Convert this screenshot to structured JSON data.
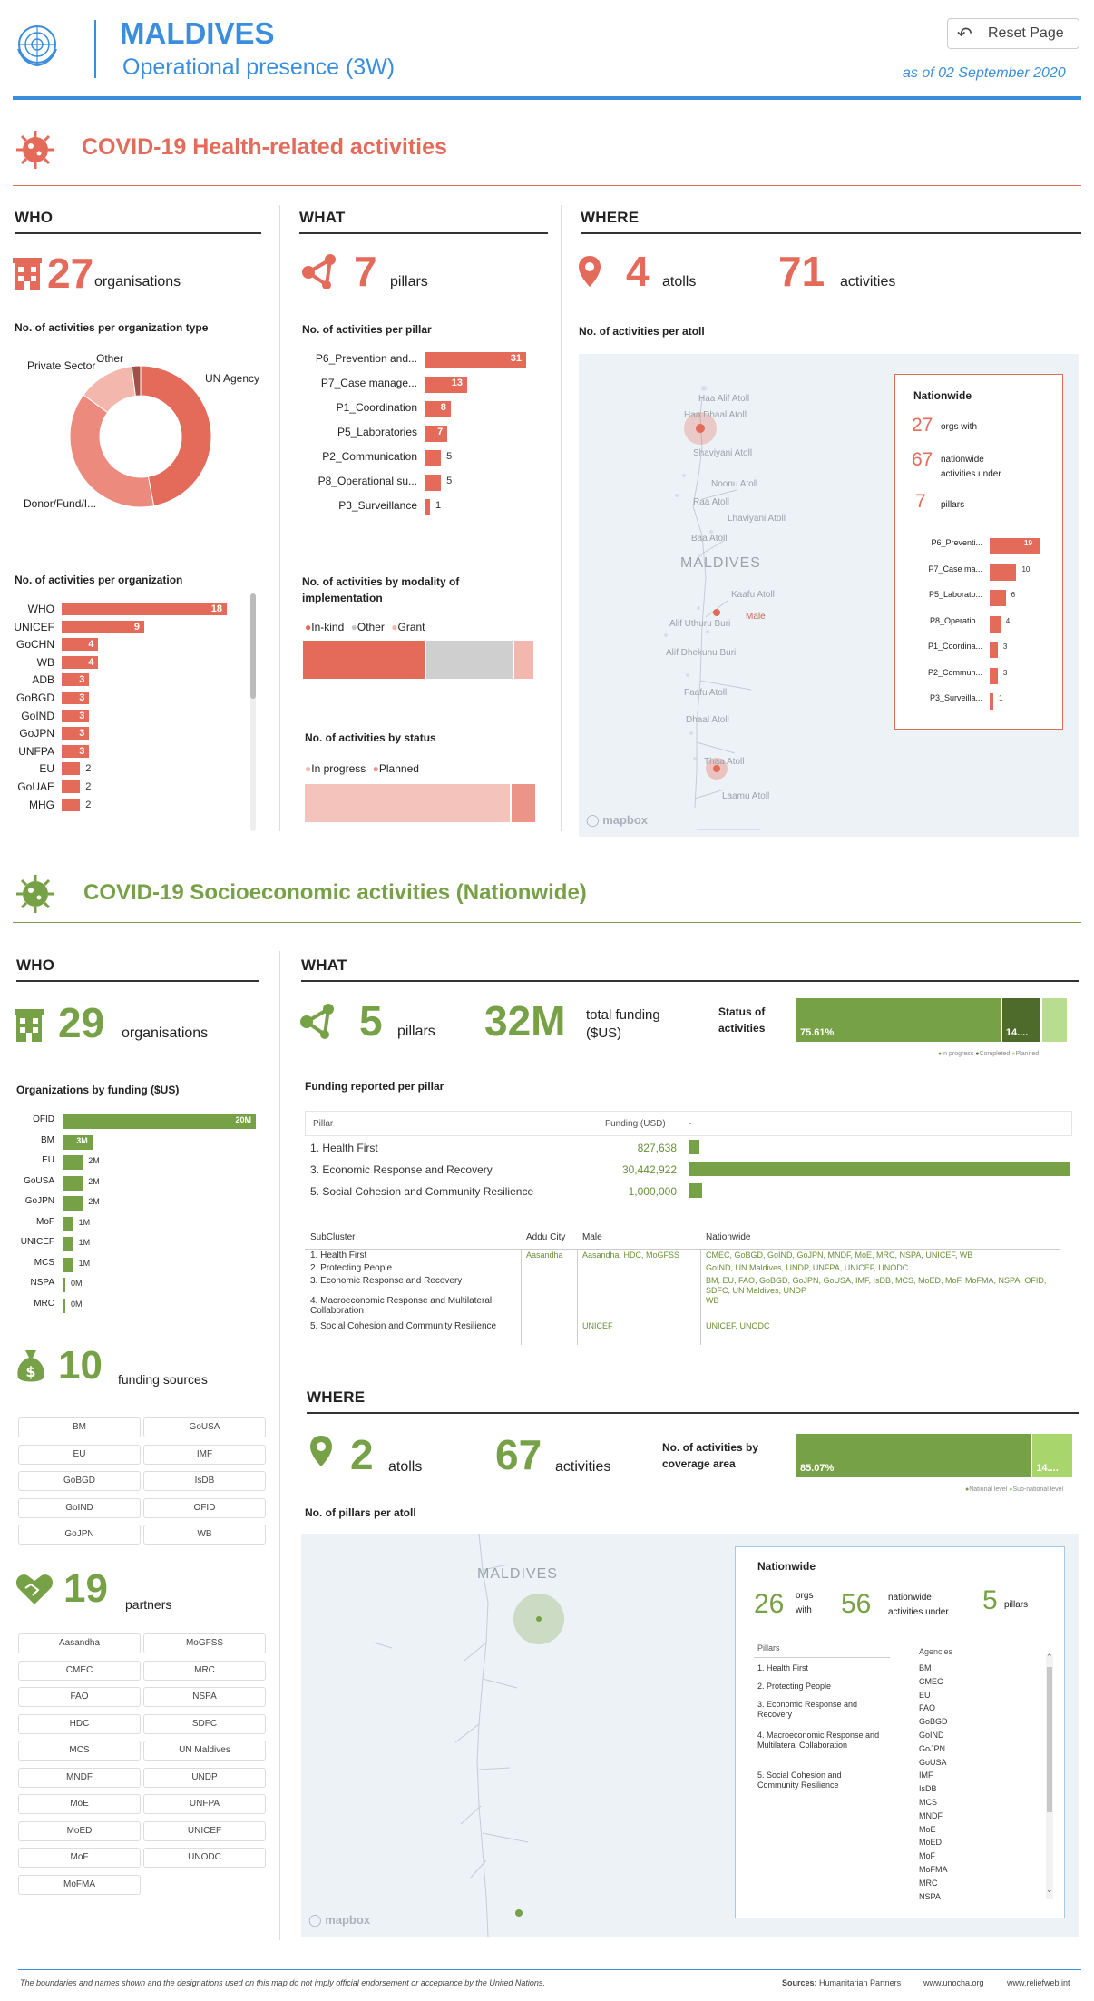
{
  "header": {
    "country": "MALDIVES",
    "subtitle": "Operational presence (3W)",
    "reset_label": "Reset Page",
    "date": "as of 02 September 2020"
  },
  "covid_health": {
    "title": "COVID-19 Health-related activities",
    "who": {
      "heading": "WHO",
      "org_count": "27",
      "org_label": "organisations",
      "donut_title": "No. of activities per organization type",
      "donut_labels": {
        "un": "UN Agency",
        "donor": "Donor/Fund/I...",
        "private": "Private Sector",
        "other": "Other"
      },
      "org_bars_title": "No. of activities per organization"
    },
    "what": {
      "heading": "WHAT",
      "pillar_count": "7",
      "pillar_label": "pillars",
      "pillar_bars_title": "No. of activities per pillar",
      "modality_title": "No. of activities by modality of implementation",
      "modality_legend": [
        "In-kind",
        "Other",
        "Grant"
      ],
      "status_title": "No. of activities by status",
      "status_legend": [
        "In progress",
        "Planned"
      ]
    },
    "where": {
      "heading": "WHERE",
      "atoll_count": "4",
      "atoll_label": "atolls",
      "activity_count": "71",
      "activity_label": "activities",
      "map_title": "No. of activities per atoll",
      "map_labels": [
        "Haa Alif Atoll",
        "Haa Dhaal Atoll",
        "Shaviyani Atoll",
        "Noonu Atoll",
        "Raa Atoll",
        "Lhaviyani Atoll",
        "Baa Atoll",
        "MALDIVES",
        "Kaafu Atoll",
        "Alif Uthuru Buri",
        "Male",
        "Alif Dhekunu Buri",
        "Faafu Atoll",
        "Dhaal Atoll",
        "Thaa Atoll",
        "Laamu Atoll"
      ],
      "mapbox": "mapbox",
      "nationwide": {
        "title": "Nationwide",
        "orgs": "27",
        "orgs_label": "orgs with",
        "acts": "67",
        "acts_label1": "nationwide",
        "acts_label2": "activities under",
        "pillars": "7",
        "pillars_label": "pillars"
      }
    }
  },
  "covid_socio": {
    "title": "COVID-19 Socioeconomic activities (Nationwide)",
    "who": {
      "heading": "WHO",
      "org_count": "29",
      "org_label": "organisations",
      "funding_title": "Organizations by funding ($US)",
      "sources_count": "10",
      "sources_label": "funding sources",
      "sources": [
        "BM",
        "GoUSA",
        "EU",
        "IMF",
        "GoBGD",
        "IsDB",
        "GoIND",
        "OFID",
        "GoJPN",
        "WB"
      ],
      "partners_count": "19",
      "partners_label": "partners",
      "partners": [
        "Aasandha",
        "MoGFSS",
        "CMEC",
        "MRC",
        "FAO",
        "NSPA",
        "HDC",
        "SDFC",
        "MCS",
        "UN Maldives",
        "MNDF",
        "UNDP",
        "MoE",
        "UNFPA",
        "MoED",
        "UNICEF",
        "MoF",
        "UNODC",
        "MoFMA"
      ]
    },
    "what": {
      "heading": "WHAT",
      "pillar_count": "5",
      "pillar_label": "pillars",
      "funding_big": "32M",
      "funding_label1": "total funding",
      "funding_label2": "($US)",
      "status_title1": "Status of",
      "status_title2": "activities",
      "status_pct": "75.61%",
      "status_pct2": "14....",
      "status_legend": [
        "In progress",
        "Completed",
        "Planned"
      ],
      "funding_pillar_title": "Funding reported per pillar",
      "pillar_table": {
        "col1": "Pillar",
        "col2": "Funding (USD)",
        "col3": "-",
        "rows": [
          {
            "name": "1. Health First",
            "value": "827,638",
            "num": 827638
          },
          {
            "name": "3. Economic Response and Recovery",
            "value": "30,442,922",
            "num": 30442922
          },
          {
            "name": "5. Social Cohesion and Community Resilience",
            "value": "1,000,000",
            "num": 1000000
          }
        ]
      },
      "subcluster_table": {
        "cols": [
          "SubCluster",
          "Addu City",
          "Male",
          "Nationwide"
        ],
        "rows": [
          {
            "sub": "1. Health First",
            "addu": "Aasandha",
            "male": "Aasandha, HDC, MoGFSS",
            "nat": "CMEC, GoBGD, GoIND, GoJPN, MNDF, MoE, MRC, NSPA, UNICEF, WB"
          },
          {
            "sub": "2. Protecting People",
            "addu": "",
            "male": "",
            "nat": "GoIND, UN Maldives, UNDP, UNFPA, UNICEF, UNODC"
          },
          {
            "sub": "3. Economic Response and Recovery",
            "addu": "",
            "male": "",
            "nat": "BM, EU, FAO, GoBGD, GoJPN, GoUSA, IMF, IsDB, MCS, MoED, MoF, MoFMA, NSPA, OFID, SDFC, UN Maldives, UNDP"
          },
          {
            "sub": "4. Macroeconomic Response and Multilateral Collaboration",
            "addu": "",
            "male": "",
            "nat": "WB"
          },
          {
            "sub": "5. Social Cohesion and Community Resilience",
            "addu": "",
            "male": "UNICEF",
            "nat": "UNICEF, UNODC"
          }
        ]
      }
    },
    "where": {
      "heading": "WHERE",
      "atoll_count": "2",
      "atoll_label": "atolls",
      "activity_count": "67",
      "activity_label": "activities",
      "coverage_title1": "No. of activities by",
      "coverage_title2": "coverage area",
      "coverage_pct": "85.07%",
      "coverage_pct2": "14....",
      "coverage_legend": [
        "National level",
        "Sub-national level"
      ],
      "map_title": "No. of pillars per atoll",
      "map_label": "MALDIVES",
      "mapbox": "mapbox",
      "nationwide": {
        "title": "Nationwide",
        "orgs": "26",
        "orgs_label1": "orgs",
        "orgs_label2": "with",
        "acts": "56",
        "acts_label1": "nationwide",
        "acts_label2": "activities under",
        "pillars": "5",
        "pillars_label": "pillars",
        "pillars_head": "Pillars",
        "pillars_list": [
          "1. Health First",
          "2. Protecting People",
          "3. Economic Response and Recovery",
          "4. Macroeconomic Response and Multilateral Collaboration",
          "5. Social Cohesion and Community Resilience"
        ],
        "agencies_head": "Agencies",
        "agencies": [
          "BM",
          "CMEC",
          "EU",
          "FAO",
          "GoBGD",
          "GoIND",
          "GoJPN",
          "GoUSA",
          "IMF",
          "IsDB",
          "MCS",
          "MNDF",
          "MoE",
          "MoED",
          "MoF",
          "MoFMA",
          "MRC",
          "NSPA"
        ]
      }
    }
  },
  "footer": {
    "disclaimer": "The boundaries and names shown and the designations used on this map do not imply official endorsement or acceptance by the United Nations.",
    "sources_label": "Sources:",
    "sources": "Humanitarian Partners",
    "link1": "www.unocha.org",
    "link2": "www.reliefweb.int"
  },
  "colors": {
    "red": "#e46a5a",
    "green": "#77a146",
    "dark_green": "#4f6b2c",
    "light_green": "#b9dd8e",
    "blue": "#3b8ddd"
  },
  "chart_data": [
    {
      "type": "pie",
      "title": "No. of activities per organization type",
      "categories": [
        "UN Agency",
        "Donor/Fund/I...",
        "Private Sector",
        "Other"
      ],
      "values": [
        47,
        38,
        13,
        2
      ]
    },
    {
      "type": "bar",
      "title": "No. of activities per organization",
      "categories": [
        "WHO",
        "UNICEF",
        "GoCHN",
        "WB",
        "ADB",
        "GoBGD",
        "GoIND",
        "GoJPN",
        "UNFPA",
        "EU",
        "GoUAE",
        "MHG"
      ],
      "values": [
        18,
        9,
        4,
        4,
        3,
        3,
        3,
        3,
        3,
        2,
        2,
        2
      ]
    },
    {
      "type": "bar",
      "title": "No. of activities per pillar",
      "categories": [
        "P6_Prevention and...",
        "P7_Case manage...",
        "P1_Coordination",
        "P5_Laboratories",
        "P2_Communication",
        "P8_Operational su...",
        "P3_Surveillance"
      ],
      "values": [
        31,
        13,
        8,
        7,
        5,
        5,
        1
      ]
    },
    {
      "type": "bar",
      "title": "No. of activities by modality of implementation",
      "categories": [
        "In-kind",
        "Other",
        "Grant"
      ],
      "values": [
        53,
        38,
        9
      ]
    },
    {
      "type": "bar",
      "title": "No. of activities by status",
      "categories": [
        "In progress",
        "Planned"
      ],
      "values": [
        89,
        11
      ]
    },
    {
      "type": "bar",
      "title": "Nationwide",
      "categories": [
        "P6_Preventi...",
        "P7_Case ma...",
        "P5_Laborato...",
        "P8_Operatio...",
        "P1_Coordina...",
        "P2_Commun...",
        "P3_Surveilla..."
      ],
      "values": [
        19,
        10,
        6,
        4,
        3,
        3,
        1
      ]
    },
    {
      "type": "bar",
      "title": "Organizations by funding ($US)",
      "categories": [
        "OFID",
        "BM",
        "EU",
        "GoUSA",
        "GoJPN",
        "MoF",
        "UNICEF",
        "MCS",
        "NSPA",
        "MRC"
      ],
      "values": [
        20,
        3,
        2,
        2,
        2,
        1,
        1,
        1,
        0,
        0
      ],
      "labels": [
        "20M",
        "3M",
        "2M",
        "2M",
        "2M",
        "1M",
        "1M",
        "1M",
        "0M",
        "0M"
      ]
    },
    {
      "type": "bar",
      "title": "Status of activities",
      "categories": [
        "In progress",
        "Completed",
        "Planned"
      ],
      "values": [
        75.61,
        14.6,
        9.79
      ]
    },
    {
      "type": "bar",
      "title": "No. of activities by coverage area",
      "categories": [
        "National level",
        "Sub-national level"
      ],
      "values": [
        85.07,
        14.93
      ]
    }
  ]
}
